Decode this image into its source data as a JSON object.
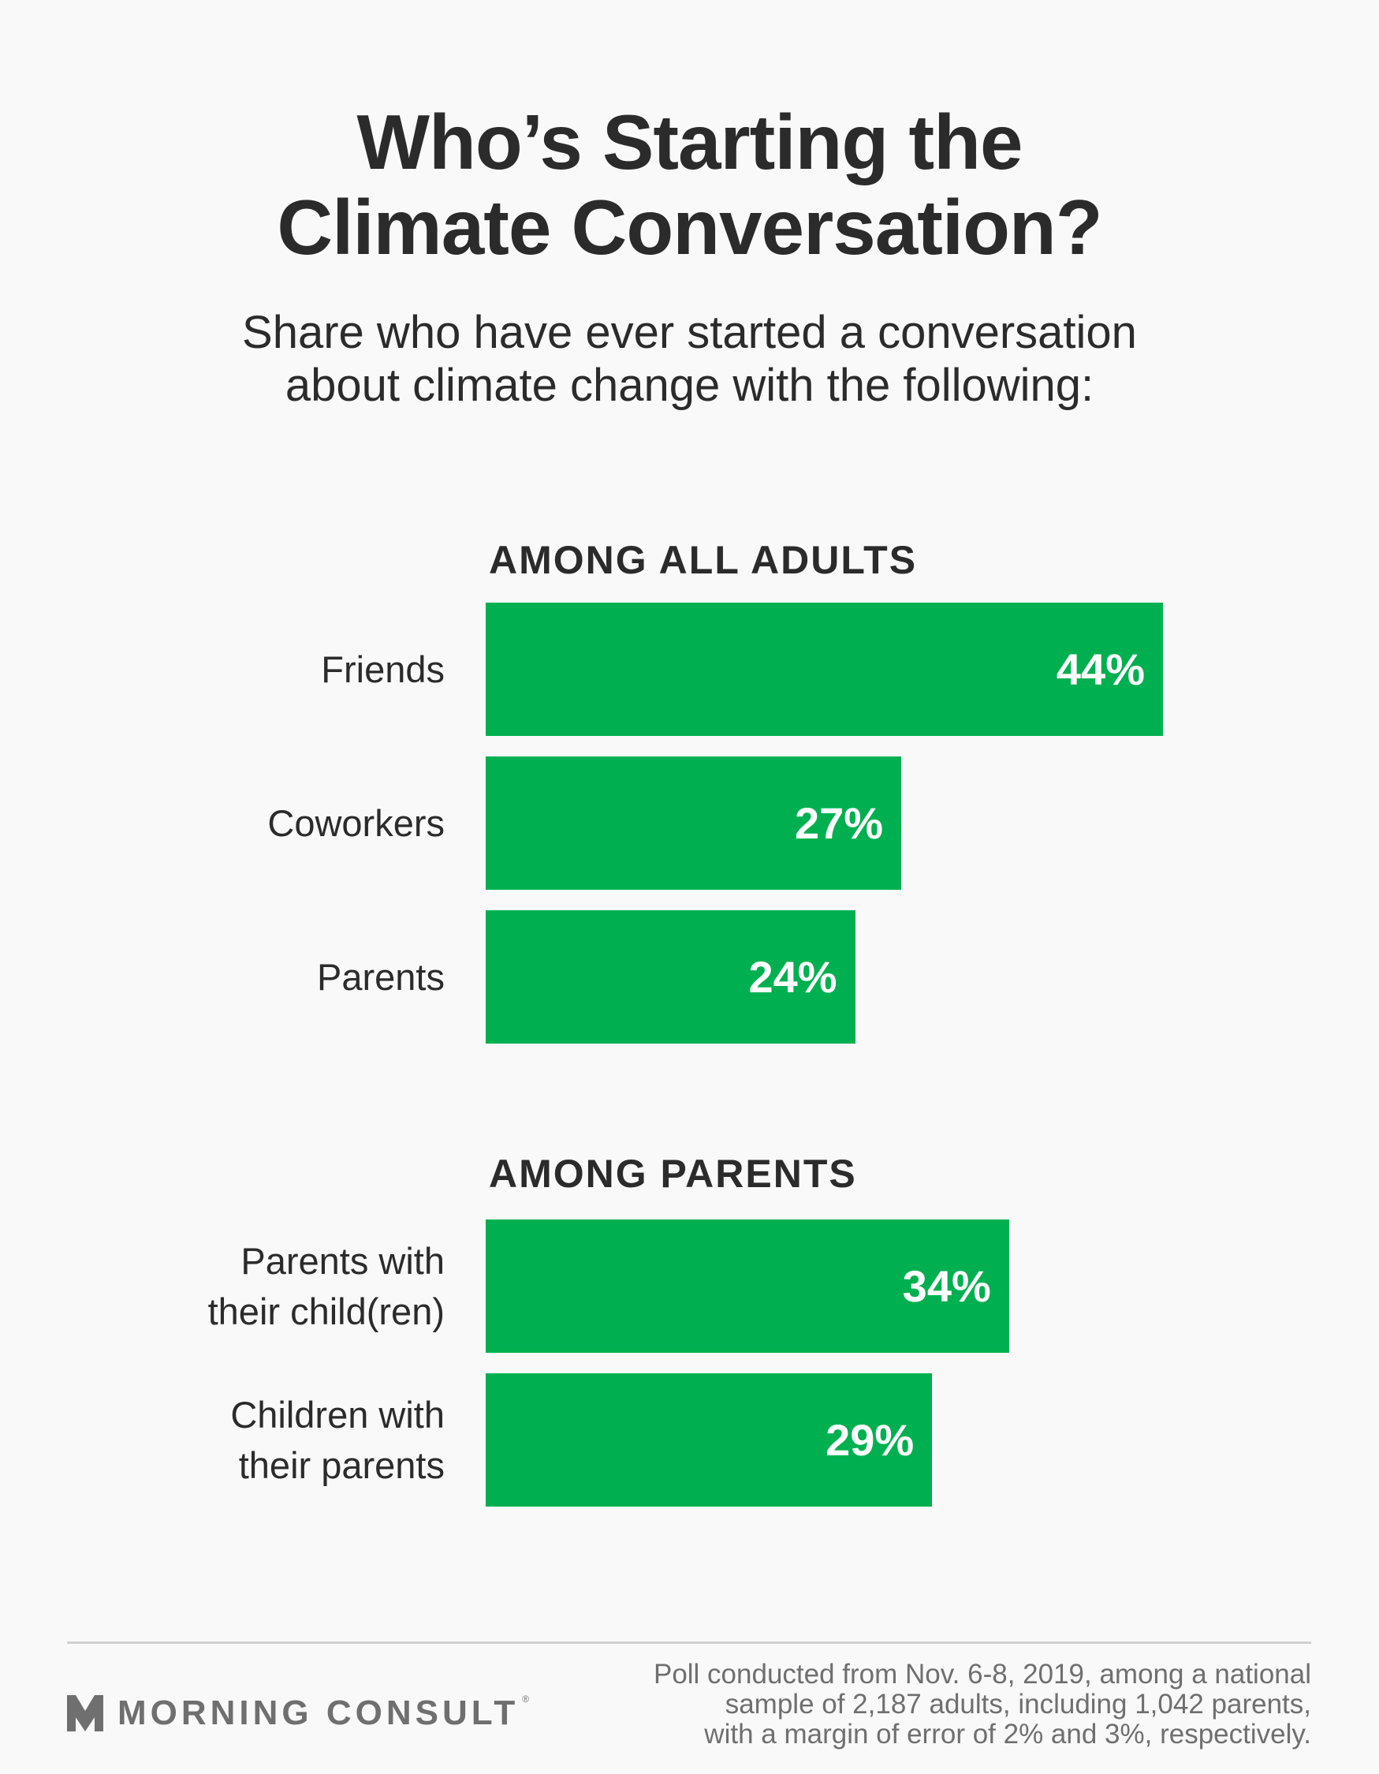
{
  "title_lines": [
    "Who’s Starting the",
    "Climate Conversation?"
  ],
  "subtitle_lines": [
    "Share who have ever started a conversation",
    "about climate change with the following:"
  ],
  "chart_data": [
    {
      "type": "bar",
      "orientation": "horizontal",
      "title": "AMONG ALL ADULTS",
      "categories": [
        [
          "Friends"
        ],
        [
          "Coworkers"
        ],
        [
          "Parents"
        ]
      ],
      "values": [
        44,
        27,
        24
      ],
      "value_labels": [
        "44%",
        "27%",
        "24%"
      ],
      "unit": "%",
      "xlim": [
        0,
        44
      ],
      "grid": false,
      "bar_color": "#00b050"
    },
    {
      "type": "bar",
      "orientation": "horizontal",
      "title": "AMONG PARENTS",
      "categories": [
        [
          "Parents with",
          "their child(ren)"
        ],
        [
          "Children with",
          "their parents"
        ]
      ],
      "values": [
        34,
        29
      ],
      "value_labels": [
        "34%",
        "29%"
      ],
      "unit": "%",
      "xlim": [
        0,
        44
      ],
      "grid": false,
      "bar_color": "#00b050"
    }
  ],
  "footer": {
    "logo_text": "MORNING CONSULT",
    "logo_mark": "®",
    "note_lines": [
      "Poll conducted from Nov. 6-8, 2019, among a national",
      "sample of 2,187 adults, including 1,042 parents,",
      "with a margin of error of 2% and 3%, respectively."
    ]
  }
}
